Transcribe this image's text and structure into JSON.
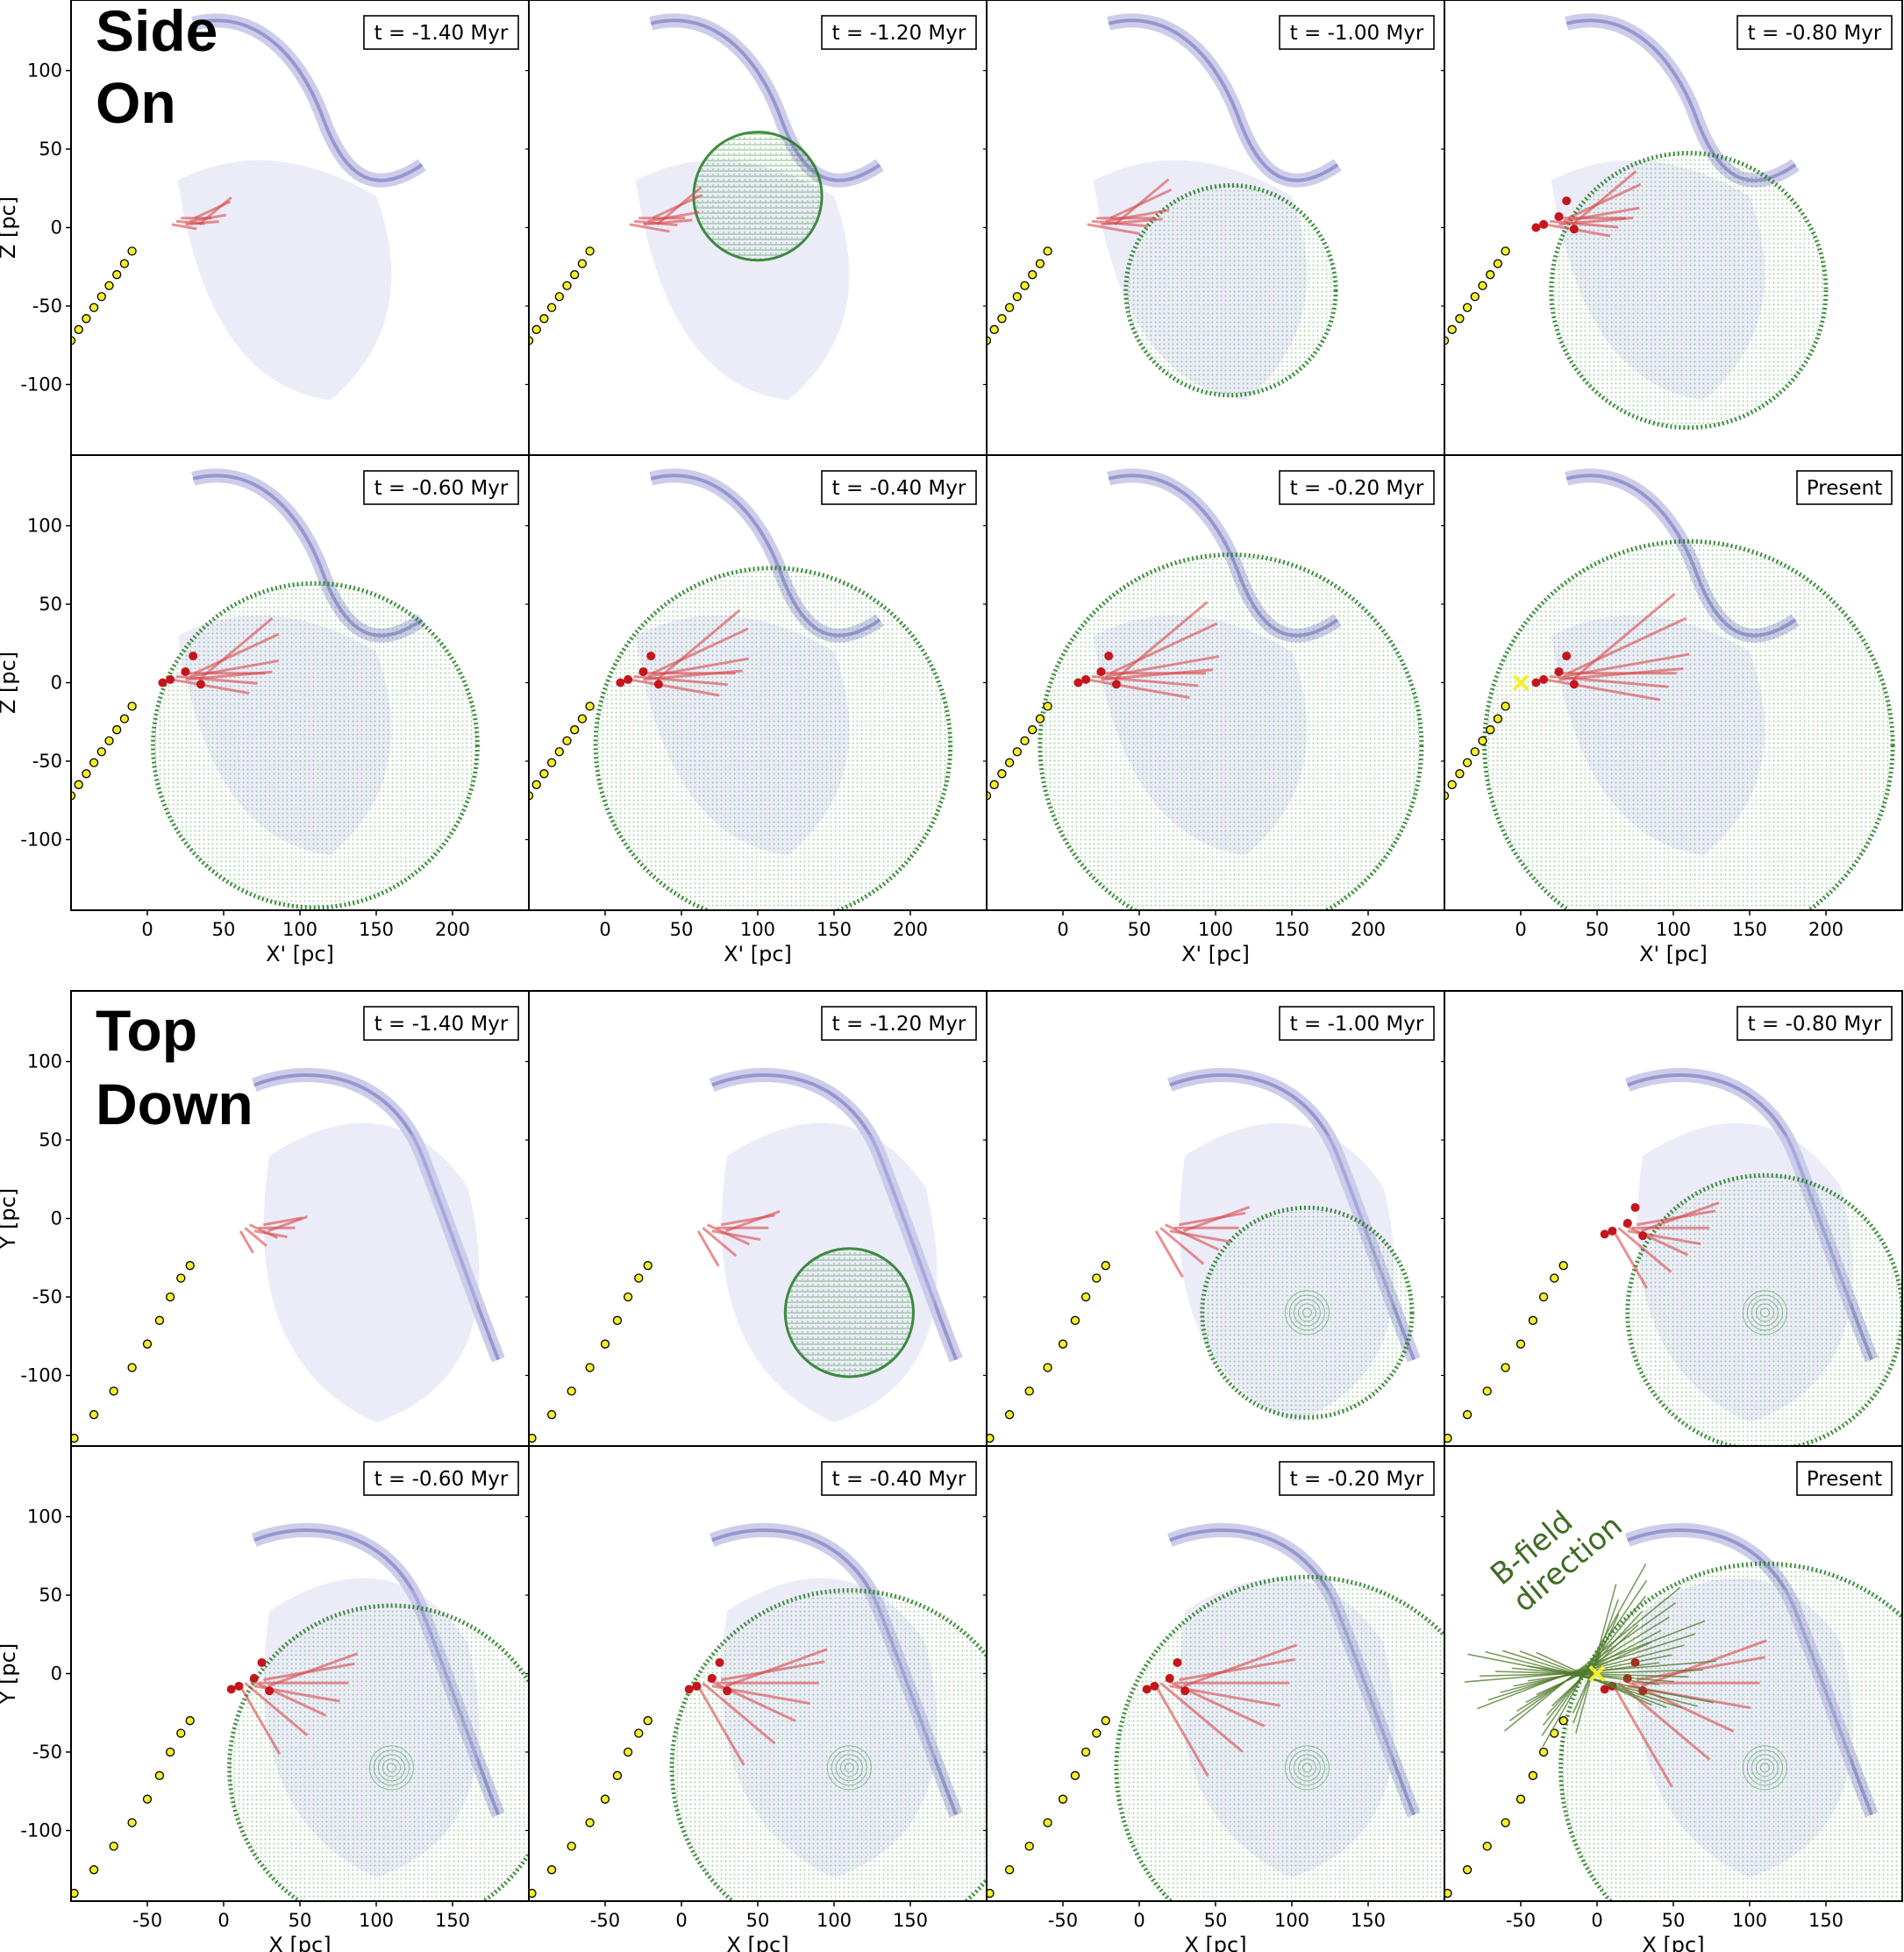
{
  "chart_data": [
    {
      "type": "scatter",
      "group": "side",
      "title_lines": [
        "Side",
        "On"
      ],
      "xlabel": "X' [pc]",
      "ylabel": "Z [pc]",
      "xlim": [
        -50,
        250
      ],
      "ylim": [
        -145,
        145
      ],
      "xticks": [
        0,
        50,
        100,
        150,
        200
      ],
      "yticks": [
        -100,
        -50,
        0,
        50,
        100
      ],
      "panels": [
        "t = -1.40 Myr",
        "t = -1.20 Myr",
        "t = -1.00 Myr",
        "t = -0.80 Myr",
        "t = -0.60 Myr",
        "t = -0.40 Myr",
        "t = -0.20 Myr",
        "Present"
      ],
      "shell_center": [
        110,
        -40
      ],
      "sun_track": [
        [
          -50,
          -72
        ],
        [
          -45,
          -65
        ],
        [
          -40,
          -58
        ],
        [
          -35,
          -51
        ],
        [
          -30,
          -44
        ],
        [
          -25,
          -37
        ],
        [
          -20,
          -30
        ],
        [
          -15,
          -23
        ],
        [
          -10,
          -15
        ]
      ],
      "present_marker": [
        0,
        0
      ]
    },
    {
      "type": "scatter",
      "group": "top",
      "title_lines": [
        "Top",
        "Down"
      ],
      "xlabel": "X [pc]",
      "ylabel": "Y [pc]",
      "xlim": [
        -100,
        200
      ],
      "ylim": [
        -145,
        145
      ],
      "xticks": [
        -50,
        0,
        50,
        100,
        150
      ],
      "yticks": [
        -100,
        -50,
        0,
        50,
        100
      ],
      "panels": [
        "t = -1.40 Myr",
        "t = -1.20 Myr",
        "t = -1.00 Myr",
        "t = -0.80 Myr",
        "t = -0.60 Myr",
        "t = -0.40 Myr",
        "t = -0.20 Myr",
        "Present"
      ],
      "shell_center": [
        110,
        -60
      ],
      "sun_track": [
        [
          -98,
          -140
        ],
        [
          -85,
          -125
        ],
        [
          -72,
          -110
        ],
        [
          -60,
          -95
        ],
        [
          -50,
          -80
        ],
        [
          -42,
          -65
        ],
        [
          -35,
          -50
        ],
        [
          -28,
          -38
        ],
        [
          -22,
          -30
        ]
      ],
      "present_marker": [
        0,
        0
      ],
      "annotation": [
        "B-field",
        "direction"
      ]
    }
  ]
}
